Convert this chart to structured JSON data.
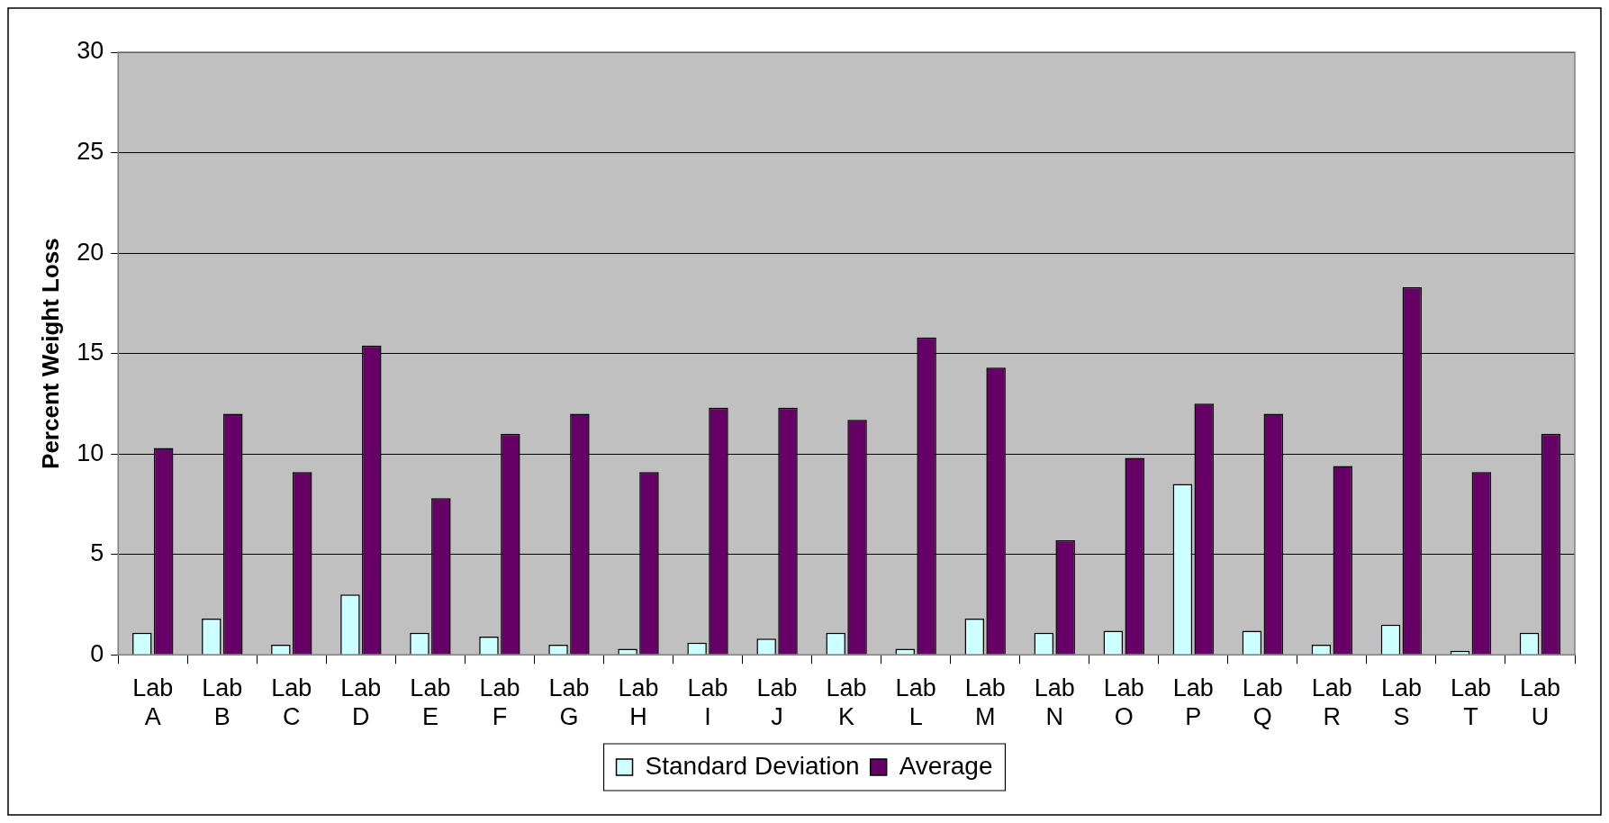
{
  "chart_data": {
    "type": "bar",
    "ylabel": "Percent Weight Loss",
    "categories": [
      "Lab A",
      "Lab B",
      "Lab C",
      "Lab D",
      "Lab E",
      "Lab F",
      "Lab G",
      "Lab H",
      "Lab I",
      "Lab J",
      "Lab K",
      "Lab L",
      "Lab M",
      "Lab N",
      "Lab O",
      "Lab P",
      "Lab Q",
      "Lab R",
      "Lab S",
      "Lab T",
      "Lab U"
    ],
    "series": [
      {
        "name": "Standard Deviation",
        "color": "#ccffff",
        "values": [
          1.1,
          1.8,
          0.5,
          3.0,
          1.1,
          0.9,
          0.5,
          0.3,
          0.6,
          0.8,
          1.1,
          0.3,
          1.8,
          1.1,
          1.2,
          8.5,
          1.2,
          0.5,
          1.5,
          0.2,
          1.1
        ]
      },
      {
        "name": "Average",
        "color": "#660066",
        "values": [
          10.3,
          12.0,
          9.1,
          15.4,
          7.8,
          11.0,
          12.0,
          9.1,
          12.3,
          12.3,
          11.7,
          15.8,
          14.3,
          5.7,
          9.8,
          12.5,
          12.0,
          9.4,
          18.3,
          9.1,
          11.0
        ]
      }
    ],
    "ylim": [
      0,
      30
    ],
    "yticks": [
      0,
      5,
      10,
      15,
      20,
      25,
      30
    ],
    "grid": "y",
    "legend": "bottom"
  }
}
